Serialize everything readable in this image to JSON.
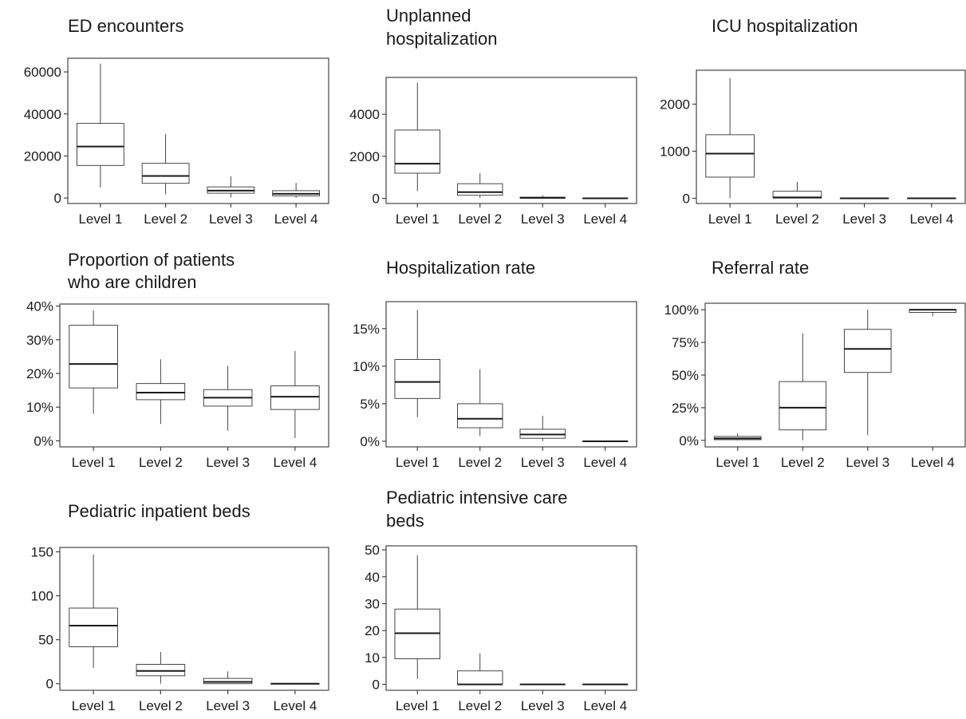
{
  "chart_data": [
    {
      "type": "box",
      "title": [
        "ED encounters"
      ],
      "categories": [
        "Level 1",
        "Level 2",
        "Level 3",
        "Level 4"
      ],
      "ylim": [
        -2600,
        66500
      ],
      "yticks": [
        0,
        20000,
        40000,
        60000
      ],
      "ytick_labels": [
        "0",
        "20000",
        "40000",
        "60000"
      ],
      "boxes": [
        {
          "min": 5000,
          "q1": 15500,
          "median": 24500,
          "q3": 35500,
          "max": 64000
        },
        {
          "min": 1800,
          "q1": 7000,
          "median": 10500,
          "q3": 16500,
          "max": 30500
        },
        {
          "min": 300,
          "q1": 2300,
          "median": 3500,
          "q3": 5300,
          "max": 10300
        },
        {
          "min": 100,
          "q1": 1000,
          "median": 2000,
          "q3": 3500,
          "max": 7200
        }
      ]
    },
    {
      "type": "box",
      "title": [
        "Unplanned",
        "hospitalization"
      ],
      "categories": [
        "Level 1",
        "Level 2",
        "Level 3",
        "Level 4"
      ],
      "ylim": [
        -240,
        5750
      ],
      "yticks": [
        0,
        2000,
        4000
      ],
      "ytick_labels": [
        "0",
        "2000",
        "4000"
      ],
      "boxes": [
        {
          "min": 350,
          "q1": 1200,
          "median": 1650,
          "q3": 3250,
          "max": 5500
        },
        {
          "min": 20,
          "q1": 150,
          "median": 300,
          "q3": 700,
          "max": 1200
        },
        {
          "min": 0,
          "q1": 10,
          "median": 30,
          "q3": 60,
          "max": 150
        },
        {
          "min": 0,
          "q1": 0,
          "median": 5,
          "q3": 15,
          "max": 30
        }
      ]
    },
    {
      "type": "box",
      "title": [
        "ICU hospitalization"
      ],
      "categories": [
        "Level 1",
        "Level 2",
        "Level 3",
        "Level 4"
      ],
      "ylim": [
        -110,
        2720
      ],
      "yticks": [
        0,
        1000,
        2000
      ],
      "ytick_labels": [
        "0",
        "1000",
        "2000"
      ],
      "boxes": [
        {
          "min": 0,
          "q1": 450,
          "median": 950,
          "q3": 1350,
          "max": 2550
        },
        {
          "min": 0,
          "q1": 5,
          "median": 20,
          "q3": 150,
          "max": 350
        },
        {
          "min": 0,
          "q1": 0,
          "median": 0,
          "q3": 2,
          "max": 5
        },
        {
          "min": 0,
          "q1": 0,
          "median": 0,
          "q3": 0,
          "max": 0
        }
      ]
    },
    {
      "type": "box",
      "title": [
        "Proportion of patients",
        "who are children"
      ],
      "categories": [
        "Level 1",
        "Level 2",
        "Level 3",
        "Level 4"
      ],
      "ylim": [
        -1.8,
        40.6
      ],
      "yticks": [
        0,
        10,
        20,
        30,
        40
      ],
      "ytick_labels": [
        "0%",
        "10%",
        "20%",
        "30%",
        "40%"
      ],
      "boxes": [
        {
          "min": 8,
          "q1": 15.7,
          "median": 22.8,
          "q3": 34.3,
          "max": 38.7
        },
        {
          "min": 5,
          "q1": 12.2,
          "median": 14.3,
          "q3": 17,
          "max": 24.2
        },
        {
          "min": 3,
          "q1": 10.3,
          "median": 12.8,
          "q3": 15.2,
          "max": 22.2
        },
        {
          "min": 0.8,
          "q1": 9.3,
          "median": 13.1,
          "q3": 16.3,
          "max": 26.7
        }
      ]
    },
    {
      "type": "box",
      "title": [
        "Hospitalization rate"
      ],
      "categories": [
        "Level 1",
        "Level 2",
        "Level 3",
        "Level 4"
      ],
      "ylim": [
        -0.75,
        18.6
      ],
      "yticks": [
        0,
        5,
        10,
        15
      ],
      "ytick_labels": [
        "0%",
        "5%",
        "10%",
        "15%"
      ],
      "boxes": [
        {
          "min": 3.2,
          "q1": 5.7,
          "median": 7.9,
          "q3": 10.9,
          "max": 17.5
        },
        {
          "min": 0.7,
          "q1": 1.8,
          "median": 3,
          "q3": 5,
          "max": 9.6
        },
        {
          "min": 0,
          "q1": 0.4,
          "median": 0.9,
          "q3": 1.6,
          "max": 3.4
        },
        {
          "min": 0,
          "q1": 0,
          "median": 0,
          "q3": 0.05,
          "max": 0.1
        }
      ]
    },
    {
      "type": "box",
      "title": [
        "Referral rate"
      ],
      "categories": [
        "Level 1",
        "Level 2",
        "Level 3",
        "Level 4"
      ],
      "ylim": [
        -5,
        105
      ],
      "yticks": [
        0,
        25,
        50,
        75,
        100
      ],
      "ytick_labels": [
        "0%",
        "25%",
        "50%",
        "75%",
        "100%"
      ],
      "boxes": [
        {
          "min": 0,
          "q1": 0.5,
          "median": 1.5,
          "q3": 3,
          "max": 5.5
        },
        {
          "min": 0,
          "q1": 8,
          "median": 25,
          "q3": 45,
          "max": 82
        },
        {
          "min": 4,
          "q1": 52,
          "median": 70,
          "q3": 85,
          "max": 100
        },
        {
          "min": 95,
          "q1": 98,
          "median": 100,
          "q3": 100,
          "max": 100
        }
      ]
    },
    {
      "type": "box",
      "title": [
        "Pediatric inpatient beds"
      ],
      "categories": [
        "Level 1",
        "Level 2",
        "Level 3",
        "Level 4"
      ],
      "ylim": [
        -7.5,
        155
      ],
      "yticks": [
        0,
        50,
        100,
        150
      ],
      "ytick_labels": [
        "0",
        "50",
        "100",
        "150"
      ],
      "boxes": [
        {
          "min": 18,
          "q1": 42,
          "median": 66,
          "q3": 86,
          "max": 147
        },
        {
          "min": 0,
          "q1": 9,
          "median": 14.5,
          "q3": 22,
          "max": 36
        },
        {
          "min": 0,
          "q1": 0,
          "median": 2,
          "q3": 6,
          "max": 14
        },
        {
          "min": 0,
          "q1": 0,
          "median": 0,
          "q3": 0,
          "max": 0
        }
      ]
    },
    {
      "type": "box",
      "title": [
        "Pediatric intensive care",
        "beds"
      ],
      "categories": [
        "Level 1",
        "Level 2",
        "Level 3",
        "Level 4"
      ],
      "ylim": [
        -2.2,
        51.5
      ],
      "yticks": [
        0,
        10,
        20,
        30,
        40,
        50
      ],
      "ytick_labels": [
        "0",
        "10",
        "20",
        "30",
        "40",
        "50"
      ],
      "boxes": [
        {
          "min": 2,
          "q1": 9.5,
          "median": 19,
          "q3": 28,
          "max": 48
        },
        {
          "min": 0,
          "q1": 0,
          "median": 0,
          "q3": 5,
          "max": 11.5
        },
        {
          "min": 0,
          "q1": 0,
          "median": 0,
          "q3": 0,
          "max": 0
        },
        {
          "min": 0,
          "q1": 0,
          "median": 0,
          "q3": 0,
          "max": 0
        }
      ]
    }
  ]
}
